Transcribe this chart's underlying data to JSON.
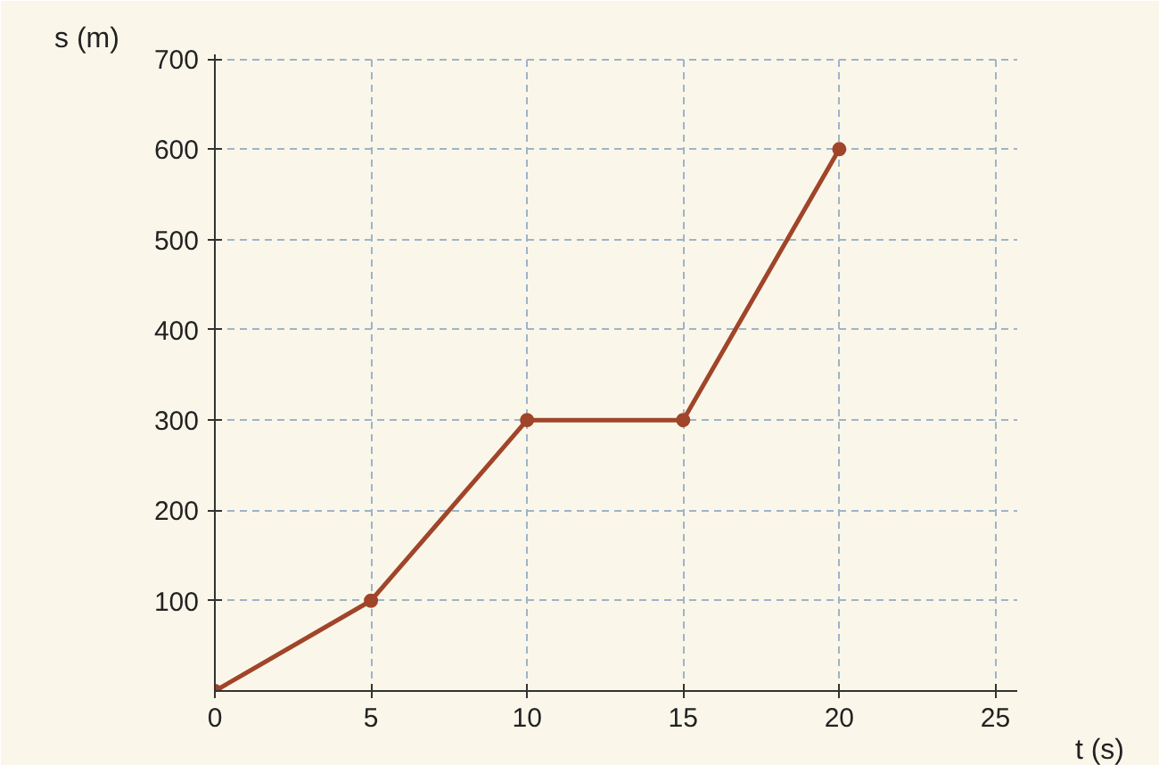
{
  "chart_data": {
    "type": "line",
    "xlabel": "t (s)",
    "ylabel": "s (m)",
    "x": [
      0,
      5,
      10,
      15,
      20
    ],
    "series": [
      {
        "color": "#a0452a",
        "values": [
          0,
          100,
          300,
          300,
          600
        ]
      }
    ],
    "xlim": [
      0,
      25.7
    ],
    "ylim": [
      0,
      705
    ],
    "xticks": [
      0,
      5,
      10,
      15,
      20,
      25
    ],
    "yticks": [
      100,
      200,
      300,
      400,
      500,
      600,
      700
    ],
    "grid": true,
    "marker": "circle",
    "line_style": "solid"
  }
}
